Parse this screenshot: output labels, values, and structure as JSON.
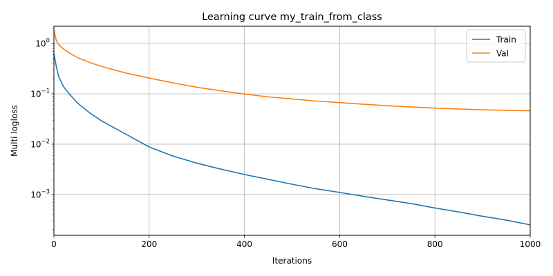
{
  "chart_data": {
    "type": "line",
    "title": "Learning curve my_train_from_class",
    "xlabel": "Iterations",
    "ylabel": "Multi logloss",
    "xlim": [
      0,
      1000
    ],
    "ylim": [
      0.000155,
      2.2
    ],
    "yscale": "log",
    "grid": true,
    "legend_position": "top-right",
    "x_ticks": [
      0,
      200,
      400,
      600,
      800,
      1000
    ],
    "y_ticks": [
      {
        "value": 0.001,
        "base": "10",
        "exp": "−3"
      },
      {
        "value": 0.01,
        "base": "10",
        "exp": "−2"
      },
      {
        "value": 0.1,
        "base": "10",
        "exp": "−1"
      },
      {
        "value": 1,
        "base": "10",
        "exp": "0"
      }
    ],
    "series": [
      {
        "name": "Train",
        "color": "#1f77b4",
        "points": [
          [
            0,
            0.62
          ],
          [
            5,
            0.35
          ],
          [
            10,
            0.22
          ],
          [
            20,
            0.14
          ],
          [
            30,
            0.105
          ],
          [
            50,
            0.065
          ],
          [
            75,
            0.042
          ],
          [
            100,
            0.029
          ],
          [
            150,
            0.016
          ],
          [
            200,
            0.0088
          ],
          [
            250,
            0.0058
          ],
          [
            300,
            0.0042
          ],
          [
            350,
            0.0032
          ],
          [
            400,
            0.0025
          ],
          [
            450,
            0.002
          ],
          [
            500,
            0.0016
          ],
          [
            550,
            0.0013
          ],
          [
            600,
            0.0011
          ],
          [
            650,
            0.00092
          ],
          [
            700,
            0.00078
          ],
          [
            750,
            0.00066
          ],
          [
            800,
            0.00054
          ],
          [
            850,
            0.00045
          ],
          [
            900,
            0.00037
          ],
          [
            950,
            0.00031
          ],
          [
            1000,
            0.00025
          ]
        ]
      },
      {
        "name": "Val",
        "color": "#ff7f0e",
        "points": [
          [
            0,
            1.8
          ],
          [
            5,
            1.15
          ],
          [
            10,
            0.95
          ],
          [
            20,
            0.78
          ],
          [
            30,
            0.67
          ],
          [
            50,
            0.52
          ],
          [
            75,
            0.42
          ],
          [
            100,
            0.35
          ],
          [
            150,
            0.26
          ],
          [
            200,
            0.205
          ],
          [
            250,
            0.165
          ],
          [
            300,
            0.135
          ],
          [
            350,
            0.115
          ],
          [
            400,
            0.099
          ],
          [
            450,
            0.087
          ],
          [
            500,
            0.079
          ],
          [
            550,
            0.072
          ],
          [
            600,
            0.067
          ],
          [
            650,
            0.062
          ],
          [
            700,
            0.058
          ],
          [
            750,
            0.055
          ],
          [
            800,
            0.052
          ],
          [
            850,
            0.05
          ],
          [
            900,
            0.048
          ],
          [
            950,
            0.047
          ],
          [
            1000,
            0.046
          ]
        ]
      }
    ]
  }
}
